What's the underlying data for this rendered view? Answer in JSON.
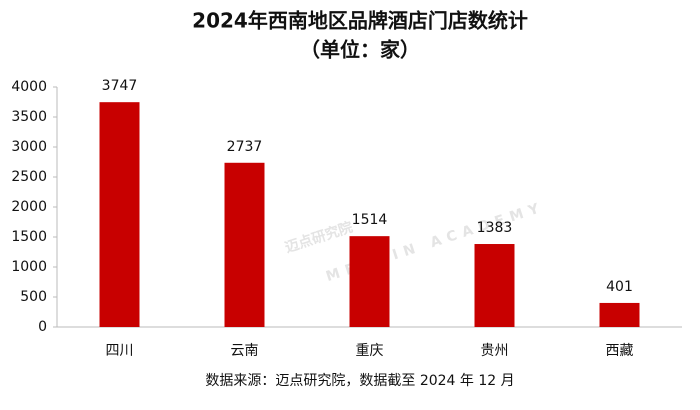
{
  "chart_data": {
    "type": "bar",
    "title": "2024年西南地区品牌酒店门店数统计",
    "subtitle": "（单位：家）",
    "categories": [
      "四川",
      "云南",
      "重庆",
      "贵州",
      "西藏"
    ],
    "values": [
      3747,
      2737,
      1514,
      1383,
      401
    ],
    "color": "#c80000",
    "ylim": [
      0,
      4000
    ],
    "yticks": [
      0,
      500,
      1000,
      1500,
      2000,
      2500,
      3000,
      3500,
      4000
    ],
    "grid": false,
    "source": "数据来源：迈点研究院，数据截至 2024 年 12 月",
    "watermark": [
      "迈点研究院",
      "MEADIN ACADEMY"
    ]
  }
}
